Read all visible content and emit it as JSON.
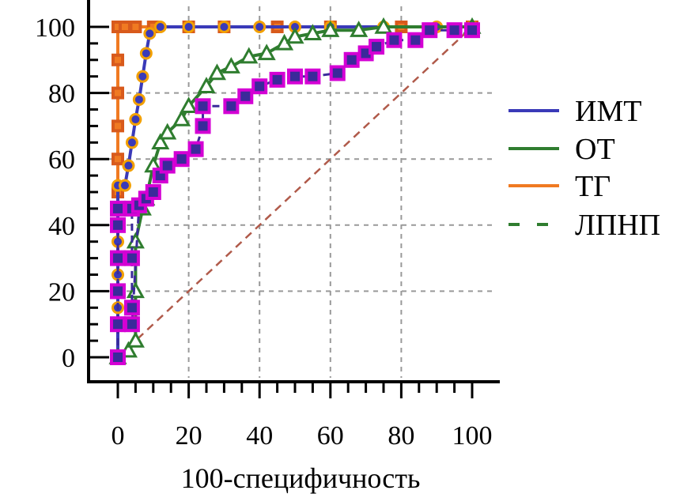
{
  "chart_data": {
    "type": "line",
    "title": "",
    "xlabel": "100-специфичность",
    "ylabel": "",
    "xlim": [
      0,
      100
    ],
    "ylim": [
      0,
      100
    ],
    "x_ticks": [
      "0",
      "20",
      "40",
      "60",
      "80",
      "100"
    ],
    "y_ticks": [
      "0",
      "20",
      "40",
      "60",
      "80",
      "100"
    ],
    "grid": true,
    "legend_position": "right",
    "legend": [
      {
        "label": "ИМТ",
        "color": "#3a3ab8",
        "style": "solid"
      },
      {
        "label": "ОТ",
        "color": "#2f7d2f",
        "style": "solid"
      },
      {
        "label": "ТГ",
        "color": "#f07a22",
        "style": "solid"
      },
      {
        "label": "ЛПНП",
        "color": "#2f7d2f",
        "style": "dashed"
      }
    ],
    "reference_line": {
      "color": "#b05a4a",
      "points": [
        [
          0,
          0
        ],
        [
          100,
          100
        ]
      ]
    },
    "series": [
      {
        "name": "ТГ",
        "color": "#f07a22",
        "edge": "#d85a1c",
        "marker": "square",
        "points": [
          [
            0,
            0
          ],
          [
            0,
            10
          ],
          [
            0,
            20
          ],
          [
            0,
            30
          ],
          [
            0,
            40
          ],
          [
            0,
            50
          ],
          [
            0,
            60
          ],
          [
            0,
            70
          ],
          [
            0,
            80
          ],
          [
            0,
            90
          ],
          [
            0,
            100
          ],
          [
            2,
            100
          ],
          [
            5,
            100
          ],
          [
            10,
            100
          ],
          [
            20,
            100
          ],
          [
            30,
            100
          ],
          [
            45,
            100
          ],
          [
            60,
            100
          ],
          [
            80,
            100
          ],
          [
            100,
            100
          ]
        ]
      },
      {
        "name": "ИМТ",
        "color": "#3a3ab8",
        "edge": "#f2a000",
        "marker": "circle",
        "points": [
          [
            0,
            0
          ],
          [
            0,
            15
          ],
          [
            0,
            25
          ],
          [
            0,
            35
          ],
          [
            0,
            45
          ],
          [
            0,
            52
          ],
          [
            2,
            52
          ],
          [
            3,
            58
          ],
          [
            4,
            65
          ],
          [
            5,
            72
          ],
          [
            6,
            78
          ],
          [
            7,
            85
          ],
          [
            8,
            92
          ],
          [
            9,
            98
          ],
          [
            12,
            100
          ],
          [
            20,
            100
          ],
          [
            30,
            100
          ],
          [
            40,
            100
          ],
          [
            50,
            100
          ],
          [
            60,
            100
          ],
          [
            75,
            100
          ],
          [
            90,
            100
          ],
          [
            100,
            100
          ]
        ]
      },
      {
        "name": "ОТ",
        "color": "#2f7d2f",
        "edge": "#2f7d2f",
        "marker": "triangle",
        "points": [
          [
            0,
            0
          ],
          [
            3,
            2
          ],
          [
            5,
            5
          ],
          [
            5,
            20
          ],
          [
            5,
            35
          ],
          [
            7,
            45
          ],
          [
            8,
            48
          ],
          [
            10,
            58
          ],
          [
            12,
            65
          ],
          [
            14,
            68
          ],
          [
            18,
            72
          ],
          [
            20,
            76
          ],
          [
            25,
            82
          ],
          [
            28,
            86
          ],
          [
            32,
            88
          ],
          [
            37,
            91
          ],
          [
            42,
            92
          ],
          [
            47,
            95
          ],
          [
            50,
            97
          ],
          [
            55,
            98
          ],
          [
            60,
            99
          ],
          [
            68,
            99
          ],
          [
            75,
            100
          ],
          [
            100,
            100
          ]
        ]
      },
      {
        "name": "ЛПНП",
        "color": "#3a2a9a",
        "edge": "#d400d4",
        "marker": "square",
        "dashed": true,
        "points": [
          [
            0,
            0
          ],
          [
            0,
            10
          ],
          [
            0,
            20
          ],
          [
            0,
            30
          ],
          [
            0,
            40
          ],
          [
            0,
            45
          ],
          [
            4,
            45
          ],
          [
            4,
            30
          ],
          [
            4,
            15
          ],
          [
            4,
            10
          ],
          [
            6,
            46
          ],
          [
            8,
            48
          ],
          [
            10,
            50
          ],
          [
            12,
            55
          ],
          [
            14,
            58
          ],
          [
            18,
            60
          ],
          [
            22,
            63
          ],
          [
            24,
            70
          ],
          [
            24,
            76
          ],
          [
            32,
            76
          ],
          [
            36,
            79
          ],
          [
            40,
            82
          ],
          [
            45,
            84
          ],
          [
            50,
            85
          ],
          [
            55,
            85
          ],
          [
            62,
            86
          ],
          [
            66,
            90
          ],
          [
            70,
            92
          ],
          [
            73,
            94
          ],
          [
            78,
            96
          ],
          [
            84,
            96
          ],
          [
            88,
            99
          ],
          [
            95,
            99
          ],
          [
            100,
            99
          ]
        ]
      }
    ]
  }
}
